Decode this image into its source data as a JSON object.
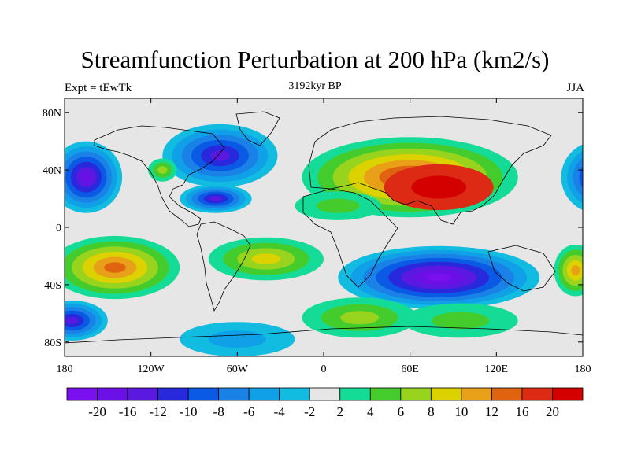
{
  "title": "Streamfunction Perturbation at 200 hPa (km2/s)",
  "left_string": "Expt = tEwTk",
  "center_string": "3192kyr BP",
  "right_string": "JJA",
  "lon_ticks": [
    {
      "lon": -180,
      "label": "180"
    },
    {
      "lon": -120,
      "label": "120W"
    },
    {
      "lon": -60,
      "label": "60W"
    },
    {
      "lon": 0,
      "label": "0"
    },
    {
      "lon": 60,
      "label": "60E"
    },
    {
      "lon": 120,
      "label": "120E"
    },
    {
      "lon": 180,
      "label": "180"
    }
  ],
  "lat_ticks": [
    {
      "lat": 80,
      "label": "80N"
    },
    {
      "lat": 40,
      "label": "40N"
    },
    {
      "lat": 0,
      "label": "0"
    },
    {
      "lat": -40,
      "label": "40S"
    },
    {
      "lat": -80,
      "label": "80S"
    }
  ],
  "lon_range": [
    -180,
    180
  ],
  "lat_range": [
    -90,
    90
  ],
  "colorbar": {
    "colors": [
      "#7a0ff0",
      "#6a10e6",
      "#5a18e0",
      "#2828dc",
      "#0a5ae6",
      "#1a82e6",
      "#10a0e8",
      "#12bce0",
      "#e6e6e6",
      "#14dc96",
      "#44cc2c",
      "#98d41e",
      "#dcd200",
      "#e8a018",
      "#e06410",
      "#dc2a14",
      "#d40000"
    ],
    "labels": [
      "-20",
      "-16",
      "-12",
      "-10",
      "-8",
      "-6",
      "-4",
      "-2",
      "2",
      "4",
      "6",
      "8",
      "10",
      "12",
      "16",
      "20"
    ]
  },
  "contour_regions": [
    {
      "name": "eurasia-high",
      "lon": 60,
      "lat": 35,
      "rx": 75,
      "ry": 28,
      "levels": [
        "#14dc96",
        "#44cc2c",
        "#98d41e",
        "#dcd200",
        "#e8a018",
        "#e06410",
        "#dc2a14"
      ]
    },
    {
      "name": "eurasia-core",
      "lon": 80,
      "lat": 28,
      "rx": 38,
      "ry": 16,
      "levels": [
        "#dc2a14",
        "#d40000"
      ]
    },
    {
      "name": "north-africa-ridge",
      "lon": 10,
      "lat": 15,
      "rx": 30,
      "ry": 10,
      "levels": [
        "#14dc96",
        "#44cc2c"
      ]
    },
    {
      "name": "n-pacific-low",
      "lon": -165,
      "lat": 35,
      "rx": 25,
      "ry": 25,
      "levels": [
        "#12bce0",
        "#10a0e8",
        "#1a82e6",
        "#0a5ae6",
        "#2828dc",
        "#5a18e0",
        "#6a10e6"
      ]
    },
    {
      "name": "n-pacific-low-east",
      "lon": 190,
      "lat": 35,
      "rx": 25,
      "ry": 25,
      "levels": [
        "#12bce0",
        "#10a0e8",
        "#1a82e6",
        "#0a5ae6",
        "#2828dc",
        "#5a18e0"
      ]
    },
    {
      "name": "na-low",
      "lon": -72,
      "lat": 50,
      "rx": 40,
      "ry": 22,
      "levels": [
        "#12bce0",
        "#10a0e8",
        "#1a82e6",
        "#0a5ae6",
        "#2828dc",
        "#5a18e0"
      ]
    },
    {
      "name": "caribbean-low",
      "lon": -75,
      "lat": 20,
      "rx": 25,
      "ry": 10,
      "levels": [
        "#12bce0",
        "#10a0e8",
        "#1a82e6",
        "#0a5ae6",
        "#2828dc",
        "#5a18e0"
      ]
    },
    {
      "name": "ne-pacific-ridge",
      "lon": -112,
      "lat": 40,
      "rx": 10,
      "ry": 8,
      "levels": [
        "#14dc96",
        "#44cc2c",
        "#98d41e"
      ]
    },
    {
      "name": "s-indian-low",
      "lon": 80,
      "lat": -35,
      "rx": 70,
      "ry": 22,
      "levels": [
        "#12bce0",
        "#10a0e8",
        "#1a82e6",
        "#0a5ae6",
        "#2828dc",
        "#5a18e0",
        "#6a10e6",
        "#7a0ff0"
      ]
    },
    {
      "name": "s-pacific-high",
      "lon": -145,
      "lat": -28,
      "rx": 45,
      "ry": 22,
      "levels": [
        "#14dc96",
        "#44cc2c",
        "#98d41e",
        "#dcd200",
        "#e8a018",
        "#e06410"
      ]
    },
    {
      "name": "s-america-high",
      "lon": -40,
      "lat": -22,
      "rx": 40,
      "ry": 15,
      "levels": [
        "#14dc96",
        "#44cc2c",
        "#98d41e",
        "#dcd200"
      ]
    },
    {
      "name": "s-pacific-low",
      "lon": -175,
      "lat": -65,
      "rx": 25,
      "ry": 14,
      "levels": [
        "#12bce0",
        "#10a0e8",
        "#1a82e6",
        "#0a5ae6",
        "#2828dc",
        "#5a18e0"
      ]
    },
    {
      "name": "antarctic-low",
      "lon": -60,
      "lat": -78,
      "rx": 40,
      "ry": 12,
      "levels": [
        "#12bce0",
        "#10a0e8"
      ]
    },
    {
      "name": "s-atlantic-high",
      "lon": 25,
      "lat": -63,
      "rx": 40,
      "ry": 14,
      "levels": [
        "#14dc96",
        "#44cc2c",
        "#98d41e"
      ]
    },
    {
      "name": "s-indian-ridge",
      "lon": 95,
      "lat": -65,
      "rx": 40,
      "ry": 12,
      "levels": [
        "#14dc96",
        "#44cc2c"
      ]
    },
    {
      "name": "australia-high",
      "lon": 175,
      "lat": -30,
      "rx": 15,
      "ry": 18,
      "levels": [
        "#14dc96",
        "#44cc2c",
        "#98d41e",
        "#dcd200",
        "#e8a018"
      ]
    }
  ]
}
